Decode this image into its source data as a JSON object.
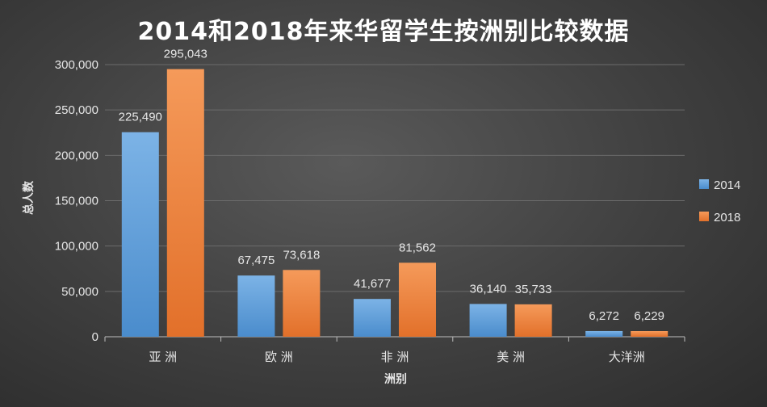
{
  "chart_data": {
    "type": "bar",
    "title": "2014和2018年来华留学生按洲别比较数据",
    "xlabel": "洲别",
    "ylabel": "总人数",
    "categories": [
      "亚 洲",
      "欧 洲",
      "非 洲",
      "美 洲",
      "大洋洲"
    ],
    "series": [
      {
        "name": "2014",
        "values": [
          225490,
          67475,
          41677,
          36140,
          6272
        ],
        "labels": [
          "225,490",
          "67,475",
          "41,677",
          "36,140",
          "6,272"
        ],
        "color": "#5b9bd5"
      },
      {
        "name": "2018",
        "values": [
          295043,
          73618,
          81562,
          35733,
          6229
        ],
        "labels": [
          "295,043",
          "73,618",
          "81,562",
          "35,733",
          "6,229"
        ],
        "color": "#ed7d31"
      }
    ],
    "ylim": [
      0,
      300000
    ],
    "yticks": [
      "0",
      "50,000",
      "100,000",
      "150,000",
      "200,000",
      "250,000",
      "300,000"
    ],
    "grid": true,
    "legend_position": "right"
  }
}
